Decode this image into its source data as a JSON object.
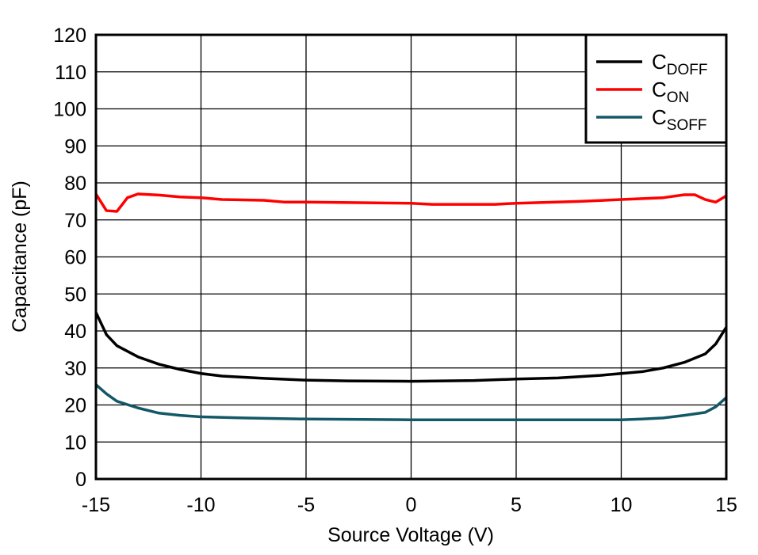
{
  "chart_data": {
    "type": "line",
    "title": "",
    "xlabel": "Source Voltage (V)",
    "ylabel": "Capacitance (pF)",
    "xlim": [
      -15,
      15
    ],
    "ylim": [
      0,
      120
    ],
    "xticks": [
      -15,
      -10,
      -5,
      0,
      5,
      10,
      15
    ],
    "yticks": [
      0,
      10,
      20,
      30,
      40,
      50,
      60,
      70,
      80,
      90,
      100,
      110,
      120
    ],
    "grid": true,
    "legend_position": "top-right",
    "series": [
      {
        "name_main": "C",
        "name_sub": "DOFF",
        "color": "#000000",
        "x": [
          -15,
          -14.5,
          -14,
          -13,
          -12,
          -11,
          -10,
          -9,
          -7,
          -5,
          -3,
          0,
          3,
          5,
          7,
          9,
          10,
          11,
          12,
          13,
          14,
          14.5,
          15
        ],
        "y": [
          45,
          39,
          36,
          33,
          31,
          29.6,
          28.5,
          27.8,
          27.2,
          26.7,
          26.5,
          26.4,
          26.6,
          27,
          27.3,
          28,
          28.5,
          29,
          30,
          31.5,
          33.8,
          36.5,
          41
        ]
      },
      {
        "name_main": "C",
        "name_sub": "ON",
        "color": "#ff0000",
        "x": [
          -15,
          -14.5,
          -14,
          -13.5,
          -13,
          -12,
          -11,
          -10,
          -9,
          -7,
          -6,
          -5,
          0,
          1,
          4,
          5,
          8,
          10,
          12,
          13,
          13.5,
          14,
          14.5,
          15
        ],
        "y": [
          77,
          72.5,
          72.3,
          76,
          77,
          76.7,
          76.2,
          76,
          75.5,
          75.3,
          74.8,
          74.8,
          74.5,
          74.2,
          74.2,
          74.5,
          75,
          75.5,
          76,
          76.8,
          76.8,
          75.5,
          74.8,
          76.5
        ]
      },
      {
        "name_main": "C",
        "name_sub": "SOFF",
        "color": "#135866",
        "x": [
          -15,
          -14.5,
          -14,
          -13,
          -12,
          -11,
          -10,
          -8,
          -5,
          0,
          5,
          10,
          11,
          12,
          13,
          14,
          14.5,
          15
        ],
        "y": [
          25.5,
          23,
          21,
          19.2,
          17.8,
          17.2,
          16.8,
          16.5,
          16.2,
          16,
          16,
          16,
          16.2,
          16.5,
          17.2,
          18,
          19.5,
          22
        ]
      }
    ]
  }
}
